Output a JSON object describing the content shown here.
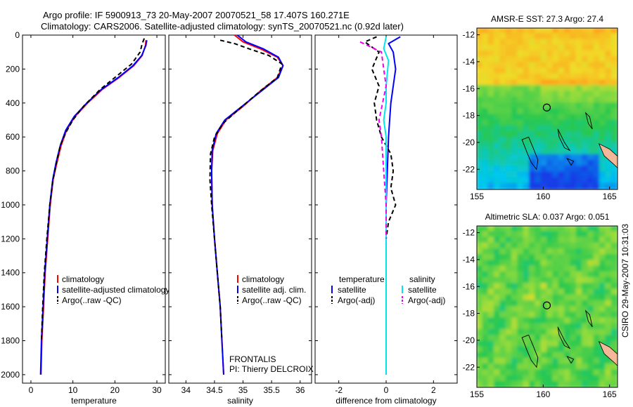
{
  "header": {
    "line1": "Argo profile: IF 5900913_73 20-May-2007 20070521_58 17.407S 160.271E",
    "line2": "Climatology: CARS2006. Satellite-adjusted climatology: synTS_20070521.nc (0.92d later)"
  },
  "side_label": "CSIRO 29-May-2007 10:31:03",
  "colors": {
    "climatology": "#ff0000",
    "satellite": "#0000ff",
    "argo": "#000000",
    "sat_salinity": "#00e5ee",
    "argo_salinity": "#ee00ee"
  },
  "chart_data": [
    {
      "id": "temperature",
      "type": "line",
      "xlabel": "temperature",
      "ylabel": "",
      "xlim": [
        -2,
        32
      ],
      "ylim": [
        2050,
        0
      ],
      "xticks": [
        0,
        10,
        20,
        30
      ],
      "yticks": [
        0,
        200,
        400,
        600,
        800,
        1000,
        1200,
        1400,
        1600,
        1800,
        2000
      ],
      "legend": [
        "climatology",
        "satellite-adjusted climatology",
        "Argo(..raw -QC)"
      ],
      "series": [
        {
          "name": "climatology",
          "color": "#ff0000",
          "dash": "",
          "points": [
            [
              27.4,
              30
            ],
            [
              27.3,
              60
            ],
            [
              26.5,
              120
            ],
            [
              24.5,
              180
            ],
            [
              21,
              250
            ],
            [
              17,
              320
            ],
            [
              13.5,
              400
            ],
            [
              10.5,
              480
            ],
            [
              8.5,
              560
            ],
            [
              7.2,
              650
            ],
            [
              6.2,
              750
            ],
            [
              5.3,
              850
            ],
            [
              4.6,
              1000
            ],
            [
              4.0,
              1200
            ],
            [
              3.4,
              1400
            ],
            [
              3,
              1600
            ],
            [
              2.6,
              1800
            ],
            [
              2.4,
              2000
            ]
          ]
        },
        {
          "name": "satellite-adjusted climatology",
          "color": "#0000ff",
          "dash": "",
          "points": [
            [
              27.6,
              30
            ],
            [
              27.4,
              60
            ],
            [
              26.4,
              120
            ],
            [
              24.3,
              180
            ],
            [
              20.8,
              250
            ],
            [
              16.8,
              320
            ],
            [
              13.3,
              400
            ],
            [
              10.3,
              480
            ],
            [
              8.3,
              560
            ],
            [
              7,
              650
            ],
            [
              6,
              750
            ],
            [
              5.2,
              850
            ],
            [
              4.5,
              1000
            ],
            [
              3.9,
              1200
            ],
            [
              3.3,
              1400
            ],
            [
              2.9,
              1600
            ],
            [
              2.5,
              1800
            ],
            [
              2.3,
              2000
            ]
          ]
        },
        {
          "name": "Argo(..raw -QC)",
          "color": "#000000",
          "dash": "6,4",
          "points": [
            [
              27,
              20
            ],
            [
              26.5,
              50
            ],
            [
              26,
              100
            ],
            [
              24,
              170
            ],
            [
              20.5,
              240
            ],
            [
              16.5,
              320
            ],
            [
              12.5,
              420
            ],
            [
              10,
              500
            ],
            [
              8.2,
              580
            ],
            [
              7,
              650
            ],
            [
              6,
              760
            ],
            [
              5.2,
              860
            ],
            [
              4.5,
              1000
            ],
            [
              3.8,
              1200
            ],
            [
              3.2,
              1400
            ],
            [
              2.8,
              1600
            ],
            [
              2.5,
              1800
            ]
          ]
        }
      ]
    },
    {
      "id": "salinity",
      "type": "line",
      "xlabel": "salinity",
      "ylabel": "",
      "xlim": [
        33.7,
        36.2
      ],
      "ylim": [
        2050,
        0
      ],
      "xticks": [
        34,
        34.5,
        35,
        35.5,
        36
      ],
      "yticks": [
        0,
        200,
        400,
        600,
        800,
        1000,
        1200,
        1400,
        1600,
        1800,
        2000
      ],
      "legend": [
        "climatology",
        "satellite adj. clim.",
        "Argo(..raw -QC)"
      ],
      "annotation": [
        "FRONTALIS",
        "PI: Thierry DELCROIX"
      ],
      "series": [
        {
          "name": "climatology",
          "color": "#ff0000",
          "dash": "",
          "points": [
            [
              34.85,
              0
            ],
            [
              35,
              40
            ],
            [
              35.3,
              80
            ],
            [
              35.6,
              130
            ],
            [
              35.7,
              180
            ],
            [
              35.6,
              250
            ],
            [
              35.3,
              330
            ],
            [
              35,
              420
            ],
            [
              34.7,
              500
            ],
            [
              34.55,
              580
            ],
            [
              34.47,
              680
            ],
            [
              34.45,
              800
            ],
            [
              34.46,
              1000
            ],
            [
              34.5,
              1200
            ],
            [
              34.55,
              1400
            ],
            [
              34.6,
              1600
            ],
            [
              34.63,
              1800
            ],
            [
              34.66,
              2000
            ]
          ]
        },
        {
          "name": "satellite adj. clim.",
          "color": "#0000ff",
          "dash": "",
          "points": [
            [
              34.9,
              0
            ],
            [
              35.05,
              40
            ],
            [
              35.35,
              80
            ],
            [
              35.62,
              130
            ],
            [
              35.7,
              180
            ],
            [
              35.62,
              250
            ],
            [
              35.32,
              330
            ],
            [
              34.98,
              420
            ],
            [
              34.68,
              500
            ],
            [
              34.53,
              580
            ],
            [
              34.46,
              680
            ],
            [
              34.45,
              800
            ],
            [
              34.46,
              1000
            ],
            [
              34.5,
              1200
            ],
            [
              34.55,
              1400
            ],
            [
              34.6,
              1600
            ],
            [
              34.63,
              1800
            ],
            [
              34.66,
              2000
            ]
          ]
        },
        {
          "name": "Argo(..raw -QC)",
          "color": "#000000",
          "dash": "6,4",
          "points": [
            [
              34.6,
              30
            ],
            [
              34.85,
              50
            ],
            [
              35.1,
              80
            ],
            [
              35.45,
              120
            ],
            [
              35.68,
              170
            ],
            [
              35.6,
              250
            ],
            [
              35.3,
              330
            ],
            [
              34.95,
              430
            ],
            [
              34.65,
              520
            ],
            [
              34.5,
              600
            ],
            [
              34.43,
              700
            ],
            [
              34.42,
              850
            ],
            [
              34.45,
              1000
            ],
            [
              34.5,
              1200
            ],
            [
              34.55,
              1400
            ],
            [
              34.6,
              1600
            ],
            [
              34.63,
              1800
            ]
          ]
        }
      ]
    },
    {
      "id": "difference",
      "type": "line",
      "xlabel": "difference from climatology",
      "ylabel": "",
      "xlim": [
        -3,
        3
      ],
      "ylim": [
        2050,
        0
      ],
      "xticks": [
        -2,
        0,
        2
      ],
      "yticks": [
        0,
        200,
        400,
        600,
        800,
        1000,
        1200,
        1400,
        1600,
        1800,
        2000
      ],
      "legend_groups": [
        {
          "title": "temperature",
          "items": [
            "satellite",
            "Argo(-adj)"
          ]
        },
        {
          "title": "salinity",
          "items": [
            "satellite",
            "Argo(-adj)"
          ]
        }
      ],
      "series": [
        {
          "name": "temperature satellite",
          "color": "#0000ff",
          "dash": "",
          "points": [
            [
              0.6,
              10
            ],
            [
              0.1,
              50
            ],
            [
              0.3,
              100
            ],
            [
              0.4,
              200
            ],
            [
              0.3,
              300
            ],
            [
              0.2,
              400
            ],
            [
              0.15,
              500
            ],
            [
              0.1,
              600
            ],
            [
              0.05,
              800
            ],
            [
              0,
              1000
            ],
            [
              0,
              2000
            ]
          ]
        },
        {
          "name": "temperature Argo(-adj)",
          "color": "#000000",
          "dash": "6,4",
          "points": [
            [
              -0.4,
              10
            ],
            [
              -0.9,
              40
            ],
            [
              -0.3,
              100
            ],
            [
              -0.6,
              200
            ],
            [
              -0.3,
              300
            ],
            [
              -0.5,
              400
            ],
            [
              -0.4,
              500
            ],
            [
              -0.2,
              600
            ],
            [
              0.2,
              700
            ],
            [
              0.3,
              800
            ],
            [
              0.2,
              900
            ],
            [
              0.4,
              1000
            ],
            [
              0.1,
              1100
            ],
            [
              0,
              1200
            ]
          ]
        },
        {
          "name": "salinity satellite",
          "color": "#00e5ee",
          "dash": "",
          "points": [
            [
              0,
              10
            ],
            [
              -0.1,
              80
            ],
            [
              0.1,
              150
            ],
            [
              0,
              300
            ],
            [
              0,
              400
            ],
            [
              -0.1,
              500
            ],
            [
              0,
              600
            ],
            [
              0,
              800
            ],
            [
              0,
              2000
            ]
          ]
        },
        {
          "name": "salinity Argo(-adj)",
          "color": "#ee00ee",
          "dash": "6,4",
          "points": [
            [
              -1.1,
              40
            ],
            [
              -0.2,
              100
            ],
            [
              -0.1,
              200
            ],
            [
              0,
              300
            ],
            [
              -0.3,
              500
            ],
            [
              -0.2,
              600
            ],
            [
              -0.1,
              800
            ],
            [
              0,
              1000
            ],
            [
              0,
              1200
            ]
          ]
        }
      ]
    },
    {
      "id": "amsr-sst-map",
      "type": "heatmap",
      "title": "AMSR-E SST: 27.3 Argo: 27.4",
      "xlim": [
        155,
        165.6
      ],
      "ylim": [
        -23.5,
        -11.5
      ],
      "xticks": [
        155,
        160,
        165
      ],
      "yticks": [
        -12,
        -14,
        -16,
        -18,
        -20,
        -22
      ],
      "marker": {
        "lon": 160.271,
        "lat": -17.407
      }
    },
    {
      "id": "altimetric-sla-map",
      "type": "heatmap",
      "title": "Altimetric SLA: 0.037 Argo: 0.051",
      "xlim": [
        155,
        165.6
      ],
      "ylim": [
        -23.5,
        -11.5
      ],
      "xticks": [
        155,
        160,
        165
      ],
      "yticks": [
        -12,
        -14,
        -16,
        -18,
        -20,
        -22
      ],
      "marker": {
        "lon": 160.271,
        "lat": -17.407
      }
    }
  ]
}
